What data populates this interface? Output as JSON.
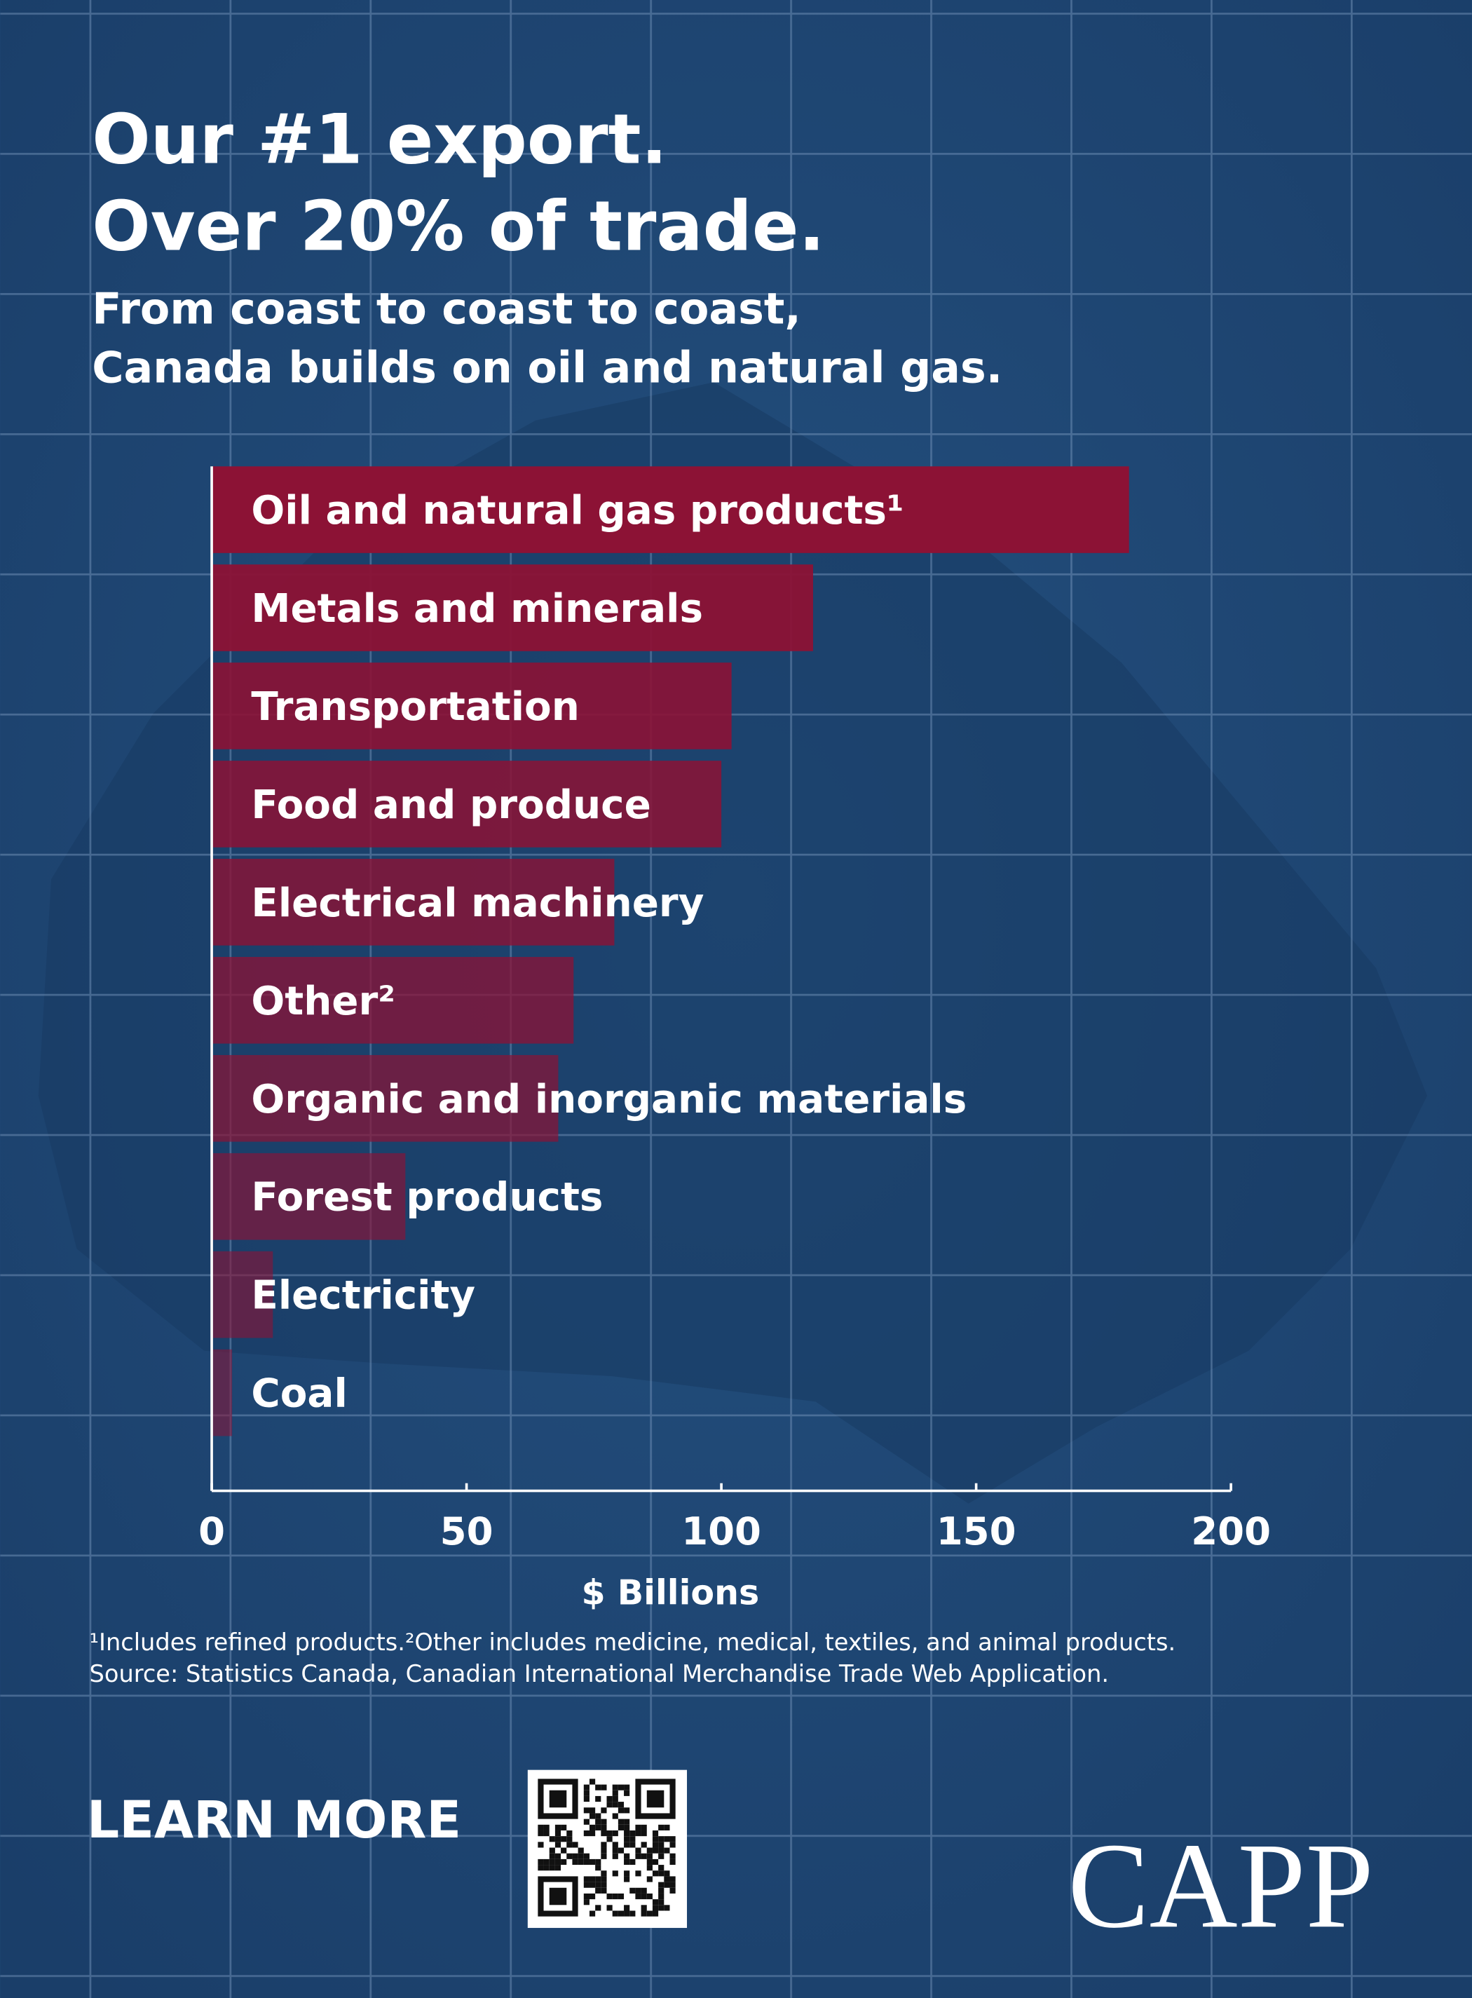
{
  "title": [
    "Our #1 export.",
    "Over 20% of trade."
  ],
  "subtitle": [
    "From coast to coast to coast,",
    "Canada builds on oil and natural gas."
  ],
  "chart_data": {
    "type": "barh",
    "categories": [
      "Oil and natural gas products¹",
      "Metals and minerals",
      "Transportation",
      "Food and produce",
      "Electrical machinery",
      "Other²",
      "Organic and inorganic materials",
      "Forest products",
      "Electricity",
      "Coal"
    ],
    "values": [
      180,
      118,
      102,
      100,
      79,
      71,
      68,
      38,
      12,
      4
    ],
    "color": "#8c1235",
    "xlim": [
      0,
      200
    ],
    "xticks": [
      0,
      50,
      100,
      150,
      200
    ],
    "xlabel": "$ Billions"
  },
  "notes": [
    "¹Includes refined products.²Other includes medicine, medical, textiles, and animal products.",
    "Source: Statistics Canada, Canadian International Merchandise Trade Web Application."
  ],
  "learn_more": "LEARN MORE",
  "logo": "CAPP"
}
